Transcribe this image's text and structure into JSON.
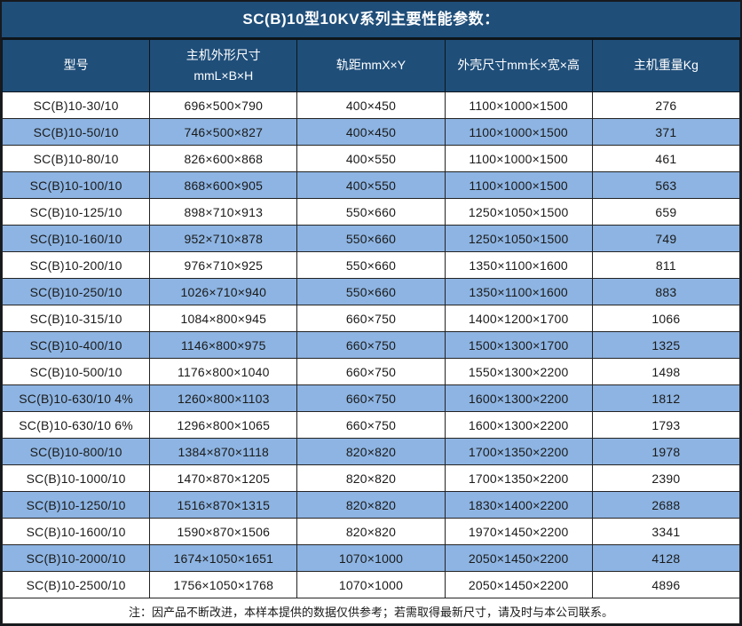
{
  "title": "SC(B)10型10KV系列主要性能参数：",
  "columns": [
    "型号",
    "主机外形尺寸\nmmL×B×H",
    "轨距mmX×Y",
    "外壳尺寸mm长×宽×高",
    "主机重量Kg"
  ],
  "rows": [
    [
      "SC(B)10-30/10",
      "696×500×790",
      "400×450",
      "1100×1000×1500",
      "276"
    ],
    [
      "SC(B)10-50/10",
      "746×500×827",
      "400×450",
      "1100×1000×1500",
      "371"
    ],
    [
      "SC(B)10-80/10",
      "826×600×868",
      "400×550",
      "1100×1000×1500",
      "461"
    ],
    [
      "SC(B)10-100/10",
      "868×600×905",
      "400×550",
      "1100×1000×1500",
      "563"
    ],
    [
      "SC(B)10-125/10",
      "898×710×913",
      "550×660",
      "1250×1050×1500",
      "659"
    ],
    [
      "SC(B)10-160/10",
      "952×710×878",
      "550×660",
      "1250×1050×1500",
      "749"
    ],
    [
      "SC(B)10-200/10",
      "976×710×925",
      "550×660",
      "1350×1100×1600",
      "811"
    ],
    [
      "SC(B)10-250/10",
      "1026×710×940",
      "550×660",
      "1350×1100×1600",
      "883"
    ],
    [
      "SC(B)10-315/10",
      "1084×800×945",
      "660×750",
      "1400×1200×1700",
      "1066"
    ],
    [
      "SC(B)10-400/10",
      "1146×800×975",
      "660×750",
      "1500×1300×1700",
      "1325"
    ],
    [
      "SC(B)10-500/10",
      "1176×800×1040",
      "660×750",
      "1550×1300×2200",
      "1498"
    ],
    [
      "SC(B)10-630/10 4%",
      "1260×800×1103",
      "660×750",
      "1600×1300×2200",
      "1812"
    ],
    [
      "SC(B)10-630/10 6%",
      "1296×800×1065",
      "660×750",
      "1600×1300×2200",
      "1793"
    ],
    [
      "SC(B)10-800/10",
      "1384×870×1118",
      "820×820",
      "1700×1350×2200",
      "1978"
    ],
    [
      "SC(B)10-1000/10",
      "1470×870×1205",
      "820×820",
      "1700×1350×2200",
      "2390"
    ],
    [
      "SC(B)10-1250/10",
      "1516×870×1315",
      "820×820",
      "1830×1400×2200",
      "2688"
    ],
    [
      "SC(B)10-1600/10",
      "1590×870×1506",
      "820×820",
      "1970×1450×2200",
      "3341"
    ],
    [
      "SC(B)10-2000/10",
      "1674×1050×1651",
      "1070×1000",
      "2050×1450×2200",
      "4128"
    ],
    [
      "SC(B)10-2500/10",
      "1756×1050×1768",
      "1070×1000",
      "2050×1450×2200",
      "4896"
    ]
  ],
  "footer_note": "注：因产品不断改进，本样本提供的数据仅供参考；若需取得最新尺寸，请及时与本公司联系。",
  "colors": {
    "header_bg": "#1F4E79",
    "stripe_bg": "#8DB4E2",
    "row_bg": "#FFFFFF",
    "border": "#232323",
    "header_text": "#FFFFFF",
    "body_text": "#1A1A1A"
  },
  "chart_data": {
    "type": "table",
    "title": "SC(B)10型10KV系列主要性能参数：",
    "columns": [
      "型号",
      "主机外形尺寸 mmL×B×H",
      "轨距mmX×Y",
      "外壳尺寸mm长×宽×高",
      "主机重量Kg"
    ],
    "rows": [
      [
        "SC(B)10-30/10",
        "696×500×790",
        "400×450",
        "1100×1000×1500",
        276
      ],
      [
        "SC(B)10-50/10",
        "746×500×827",
        "400×450",
        "1100×1000×1500",
        371
      ],
      [
        "SC(B)10-80/10",
        "826×600×868",
        "400×550",
        "1100×1000×1500",
        461
      ],
      [
        "SC(B)10-100/10",
        "868×600×905",
        "400×550",
        "1100×1000×1500",
        563
      ],
      [
        "SC(B)10-125/10",
        "898×710×913",
        "550×660",
        "1250×1050×1500",
        659
      ],
      [
        "SC(B)10-160/10",
        "952×710×878",
        "550×660",
        "1250×1050×1500",
        749
      ],
      [
        "SC(B)10-200/10",
        "976×710×925",
        "550×660",
        "1350×1100×1600",
        811
      ],
      [
        "SC(B)10-250/10",
        "1026×710×940",
        "550×660",
        "1350×1100×1600",
        883
      ],
      [
        "SC(B)10-315/10",
        "1084×800×945",
        "660×750",
        "1400×1200×1700",
        1066
      ],
      [
        "SC(B)10-400/10",
        "1146×800×975",
        "660×750",
        "1500×1300×1700",
        1325
      ],
      [
        "SC(B)10-500/10",
        "1176×800×1040",
        "660×750",
        "1550×1300×2200",
        1498
      ],
      [
        "SC(B)10-630/10 4%",
        "1260×800×1103",
        "660×750",
        "1600×1300×2200",
        1812
      ],
      [
        "SC(B)10-630/10 6%",
        "1296×800×1065",
        "660×750",
        "1600×1300×2200",
        1793
      ],
      [
        "SC(B)10-800/10",
        "1384×870×1118",
        "820×820",
        "1700×1350×2200",
        1978
      ],
      [
        "SC(B)10-1000/10",
        "1470×870×1205",
        "820×820",
        "1700×1350×2200",
        2390
      ],
      [
        "SC(B)10-1250/10",
        "1516×870×1315",
        "820×820",
        "1830×1400×2200",
        2688
      ],
      [
        "SC(B)10-1600/10",
        "1590×870×1506",
        "820×820",
        "1970×1450×2200",
        3341
      ],
      [
        "SC(B)10-2000/10",
        "1674×1050×1651",
        "1070×1000",
        "2050×1450×2200",
        4128
      ],
      [
        "SC(B)10-2500/10",
        "1756×1050×1768",
        "1070×1000",
        "2050×1450×2200",
        4896
      ]
    ],
    "note": "注：因产品不断改进，本样本提供的数据仅供参考；若需取得最新尺寸，请及时与本公司联系。",
    "layout": {
      "striped_rows": true,
      "stripe_pattern": "even rows blue",
      "grid": true
    }
  }
}
